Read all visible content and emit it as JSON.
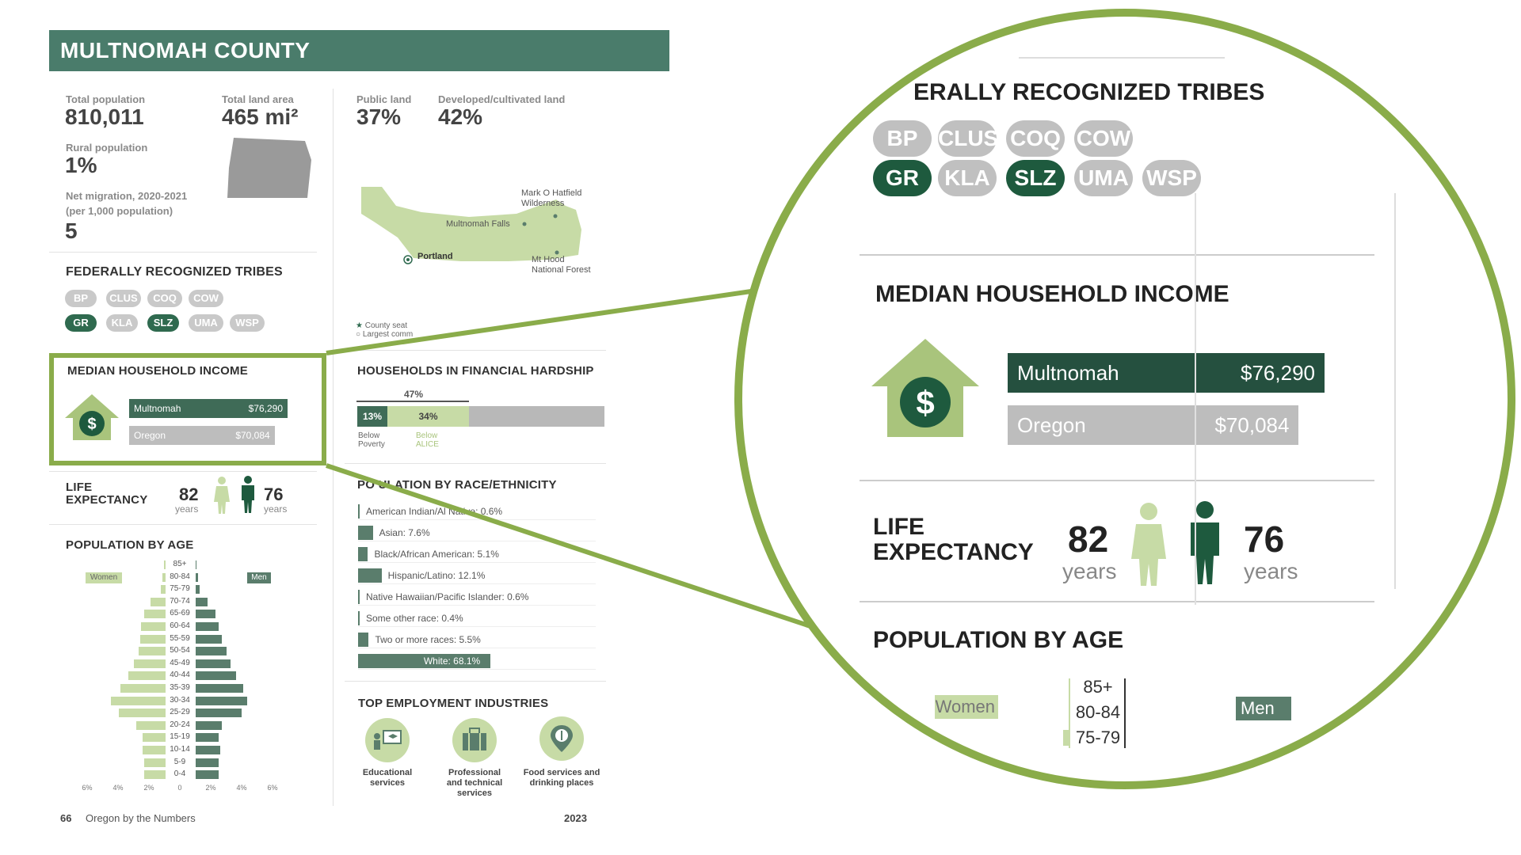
{
  "header": {
    "title": "MULTNOMAH COUNTY"
  },
  "stats": {
    "total_population_label": "Total population",
    "total_population": "810,011",
    "total_land_label": "Total land area",
    "total_land": "465 mi²",
    "rural_label": "Rural population",
    "rural": "1%",
    "net_migration_label": "Net migration, 2020-2021",
    "net_migration_sub": "(per 1,000 population)",
    "net_migration": "5",
    "public_land_label": "Public land",
    "public_land": "37%",
    "developed_label": "Developed/cultivated land",
    "developed": "42%"
  },
  "map": {
    "labels": [
      "Mark O Hatfield",
      "Wilderness",
      "Multnomah Falls",
      "Portland",
      "Mt Hood",
      "National Forest"
    ],
    "legend": [
      "County seat",
      "Largest comm"
    ]
  },
  "tribes": {
    "title": "FEDERALLY RECOGNIZED TRIBES",
    "zoom_title": "ERALLY RECOGNIZED TRIBES",
    "items": [
      {
        "code": "BP",
        "highlight": false
      },
      {
        "code": "CLUS",
        "highlight": false
      },
      {
        "code": "COQ",
        "highlight": false
      },
      {
        "code": "COW",
        "highlight": false
      },
      {
        "code": "GR",
        "highlight": true
      },
      {
        "code": "KLA",
        "highlight": false
      },
      {
        "code": "SLZ",
        "highlight": true
      },
      {
        "code": "UMA",
        "highlight": false
      },
      {
        "code": "WSP",
        "highlight": false
      }
    ]
  },
  "income": {
    "title": "MEDIAN HOUSEHOLD INCOME",
    "rows": [
      {
        "name": "Multnomah",
        "value": "$76,290",
        "amount": 76290,
        "color": "#3f6b57"
      },
      {
        "name": "Oregon",
        "value": "$70,084",
        "amount": 70084,
        "color": "#bdbdbd"
      }
    ],
    "icon": "house-dollar-icon"
  },
  "hardship": {
    "title": "HOUSEHOLDS IN FINANCIAL HARDSHIP",
    "total": "47%",
    "below_poverty": "13%",
    "below_alice": "34%",
    "below_poverty_label": [
      "Below",
      "Poverty"
    ],
    "below_alice_label": [
      "Below",
      "ALICE"
    ]
  },
  "life": {
    "title_1": "LIFE",
    "title_2": "EXPECTANCY",
    "women": "82",
    "men": "76",
    "unit": "years"
  },
  "race": {
    "title": "PO ULATION BY RACE/ETHNICITY",
    "rows": [
      {
        "label": "American Indian/Al      Native: 0.6%",
        "pct": 0.6
      },
      {
        "label": "Asian: 7.6%",
        "pct": 7.6
      },
      {
        "label": "Black/African American: 5.1%",
        "pct": 5.1
      },
      {
        "label": "Hispanic/Latino: 12.1%",
        "pct": 12.1
      },
      {
        "label": "Native Hawaiian/Pacific Islander: 0.6%",
        "pct": 0.6
      },
      {
        "label": "Some other race: 0.4%",
        "pct": 0.4
      },
      {
        "label": "Two or more races: 5.5%",
        "pct": 5.5
      },
      {
        "label": "White: 68.1%",
        "pct": 68.1
      }
    ]
  },
  "age": {
    "title": "POPULATION BY AGE",
    "women_label": "Women",
    "men_label": "Men",
    "axis": [
      "6%",
      "4%",
      "2%",
      "0",
      "2%",
      "4%",
      "6%"
    ],
    "groups": [
      "85+",
      "80-84",
      "75-79",
      "70-74",
      "65-69",
      "60-64",
      "55-59",
      "50-54",
      "45-49",
      "40-44",
      "35-39",
      "30-34",
      "25-29",
      "20-24",
      "15-19",
      "10-14",
      "5-9",
      "0-4"
    ],
    "women": [
      0.2,
      0.3,
      0.5,
      1.5,
      2.2,
      2.5,
      2.6,
      2.7,
      3.2,
      3.8,
      4.6,
      5.5,
      4.7,
      3.0,
      2.3,
      2.3,
      2.2,
      2.2
    ],
    "men": [
      0.1,
      0.2,
      0.4,
      1.2,
      2.0,
      2.3,
      2.6,
      3.1,
      3.5,
      4.1,
      4.8,
      5.2,
      4.6,
      2.6,
      2.3,
      2.5,
      2.3,
      2.3
    ]
  },
  "employment": {
    "title": "TOP EMPLOYMENT INDUSTRIES",
    "items": [
      {
        "l1": "Educational",
        "l2": "services",
        "l3": ""
      },
      {
        "l1": "Professional",
        "l2": "and technical",
        "l3": "services"
      },
      {
        "l1": "Food services and",
        "l2": "drinking places",
        "l3": ""
      }
    ]
  },
  "footer": {
    "page": "66",
    "pub": "Oregon by the Numbers",
    "year": "2023"
  },
  "colors": {
    "accent_green": "#8aac4a",
    "header_green": "#4a7c6b",
    "dark_green": "#1e5a3e"
  }
}
